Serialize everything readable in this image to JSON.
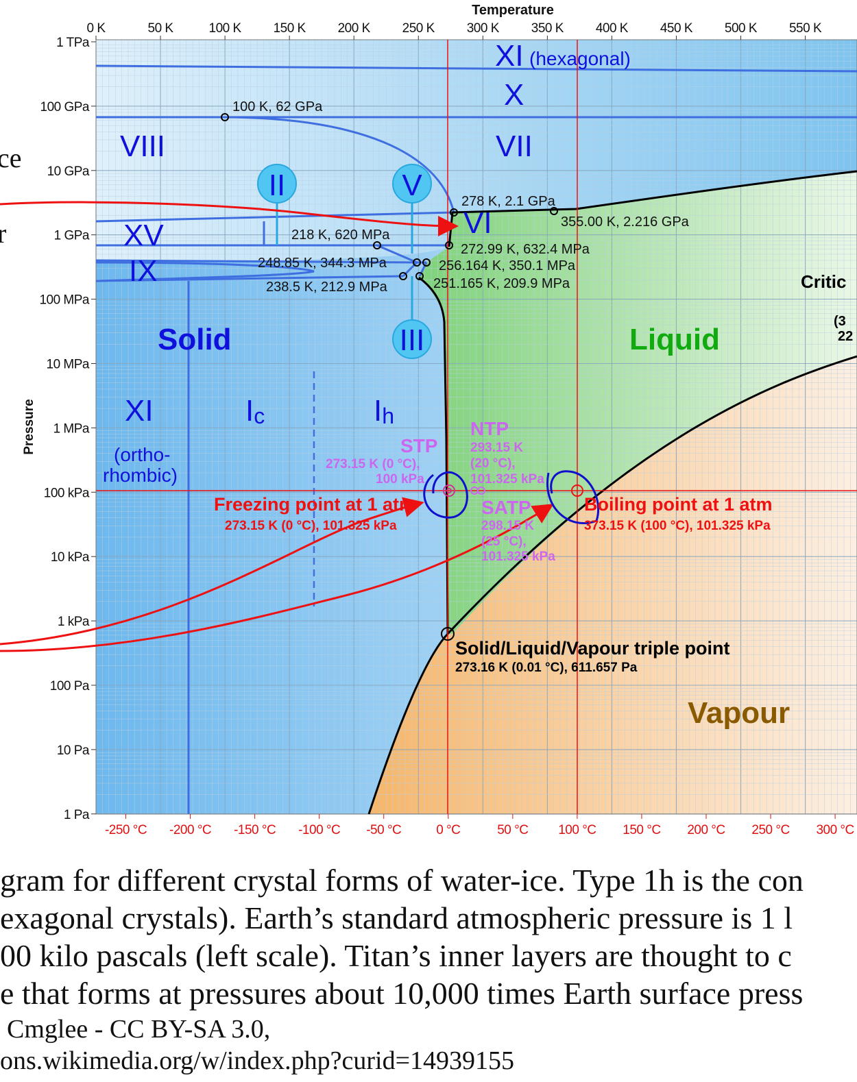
{
  "chart_data": {
    "type": "phase diagram",
    "x_axis_top": {
      "title": "Temperature",
      "ticks": [
        "0 K",
        "50 K",
        "100 K",
        "150 K",
        "200 K",
        "250 K",
        "300 K",
        "350 K",
        "400 K",
        "450 K",
        "500 K",
        "550 K"
      ]
    },
    "x_axis_bottom": {
      "ticks": [
        "-250 °C",
        "-200 °C",
        "-150 °C",
        "-100 °C",
        "-50 °C",
        "0 °C",
        "50 °C",
        "100 °C",
        "150 °C",
        "200 °C",
        "250 °C",
        "300 °C"
      ]
    },
    "y_axis": {
      "title": "Pressure",
      "scale": "log",
      "ticks": [
        "1 TPa",
        "100 GPa",
        "10 GPa",
        "1 GPa",
        "100 MPa",
        "10 MPa",
        "1 MPa",
        "100 kPa",
        "10 kPa",
        "1 kPa",
        "100 Pa",
        "10 Pa",
        "1 Pa"
      ]
    },
    "phase_labels": {
      "xi_hex": "XI",
      "xi_hex_sub": "(hexagonal)",
      "x": "X",
      "vii": "VII",
      "viii": "VIII",
      "ii": "II",
      "v": "V",
      "vi": "VI",
      "xv": "XV",
      "ix": "IX",
      "iii": "III",
      "solid": "Solid",
      "liquid": "Liquid",
      "vapour": "Vapour",
      "xi_orth": "XI",
      "xi_orth_sub1": "(ortho-",
      "xi_orth_sub2": "rhombic)",
      "ic": "I",
      "ic_sub": "c",
      "ih": "I",
      "ih_sub": "h",
      "critical": "Critic",
      "critical_sub1": "(3",
      "critical_sub2": "22"
    },
    "points": [
      {
        "label": "100 K, 62 GPa",
        "T_K": 100,
        "P_Pa": 62000000000.0
      },
      {
        "label": "278 K, 2.1 GPa",
        "T_K": 278,
        "P_Pa": 2100000000.0
      },
      {
        "label": "355.00 K, 2.216 GPa",
        "T_K": 355,
        "P_Pa": 2216000000.0
      },
      {
        "label": "218 K, 620 MPa",
        "T_K": 218,
        "P_Pa": 620000000.0
      },
      {
        "label": "272.99 K, 632.4 MPa",
        "T_K": 272.99,
        "P_Pa": 632400000.0
      },
      {
        "label": "248.85 K, 344.3 MPa",
        "T_K": 248.85,
        "P_Pa": 344300000.0
      },
      {
        "label": "256.164 K, 350.1 MPa",
        "T_K": 256.164,
        "P_Pa": 350100000.0
      },
      {
        "label": "238.5 K, 212.9 MPa",
        "T_K": 238.5,
        "P_Pa": 212900000.0
      },
      {
        "label": "251.165 K, 209.9 MPa",
        "T_K": 251.165,
        "P_Pa": 209900000.0
      }
    ],
    "annotations": {
      "stp_title": "STP",
      "stp_l1": "273.15 K (0 °C),",
      "stp_l2": "100 kPa",
      "ntp_title": "NTP",
      "ntp_l1": "293.15 K",
      "ntp_l2": "(20 °C),",
      "ntp_l3": "101.325 kPa",
      "satp_title": "SATP",
      "satp_l1": "298.15 K",
      "satp_l2": "(25 °C),",
      "satp_l3": "101.325 kPa",
      "freezing_title": "Freezing point at 1 atm",
      "freezing_sub": "273.15 K (0 °C), 101.325 kPa",
      "boiling_title": "Boiling point at 1 atm",
      "boiling_sub": "373.15 K (100 °C), 101.325 kPa",
      "triple_title": "Solid/Liquid/Vapour triple point",
      "triple_sub": "273.16 K (0.01 °C), 611.657 Pa"
    },
    "colors": {
      "solid": "#8fcbf2",
      "liquid": "#9edf8e",
      "vapour": "#f8c98c",
      "phase_line": "#3f6ee0",
      "boundary": "#000000",
      "reference_line": "#ee1111",
      "phase_label": "#1010dd",
      "liquid_label": "#11aa11",
      "vapour_label": "#8a5a00",
      "annotation": "#cc66ee"
    }
  },
  "caption": {
    "line1": "gram for different crystal forms of water-ice. Type 1h is the con",
    "line2": "exagonal crystals). Earth’s standard atmospheric pressure is 1 l",
    "line3": "00 kilo pascals (left scale). Titan’s inner layers are thought to c",
    "line4": "e that forms at pressures about 10,000 times Earth surface press",
    "line5": "Cmglee - CC BY-SA 3.0,",
    "line6": "ons.wikimedia.org/w/index.php?curid=14939155"
  },
  "side_fragments": {
    "ce": "ce",
    "r": "r"
  }
}
